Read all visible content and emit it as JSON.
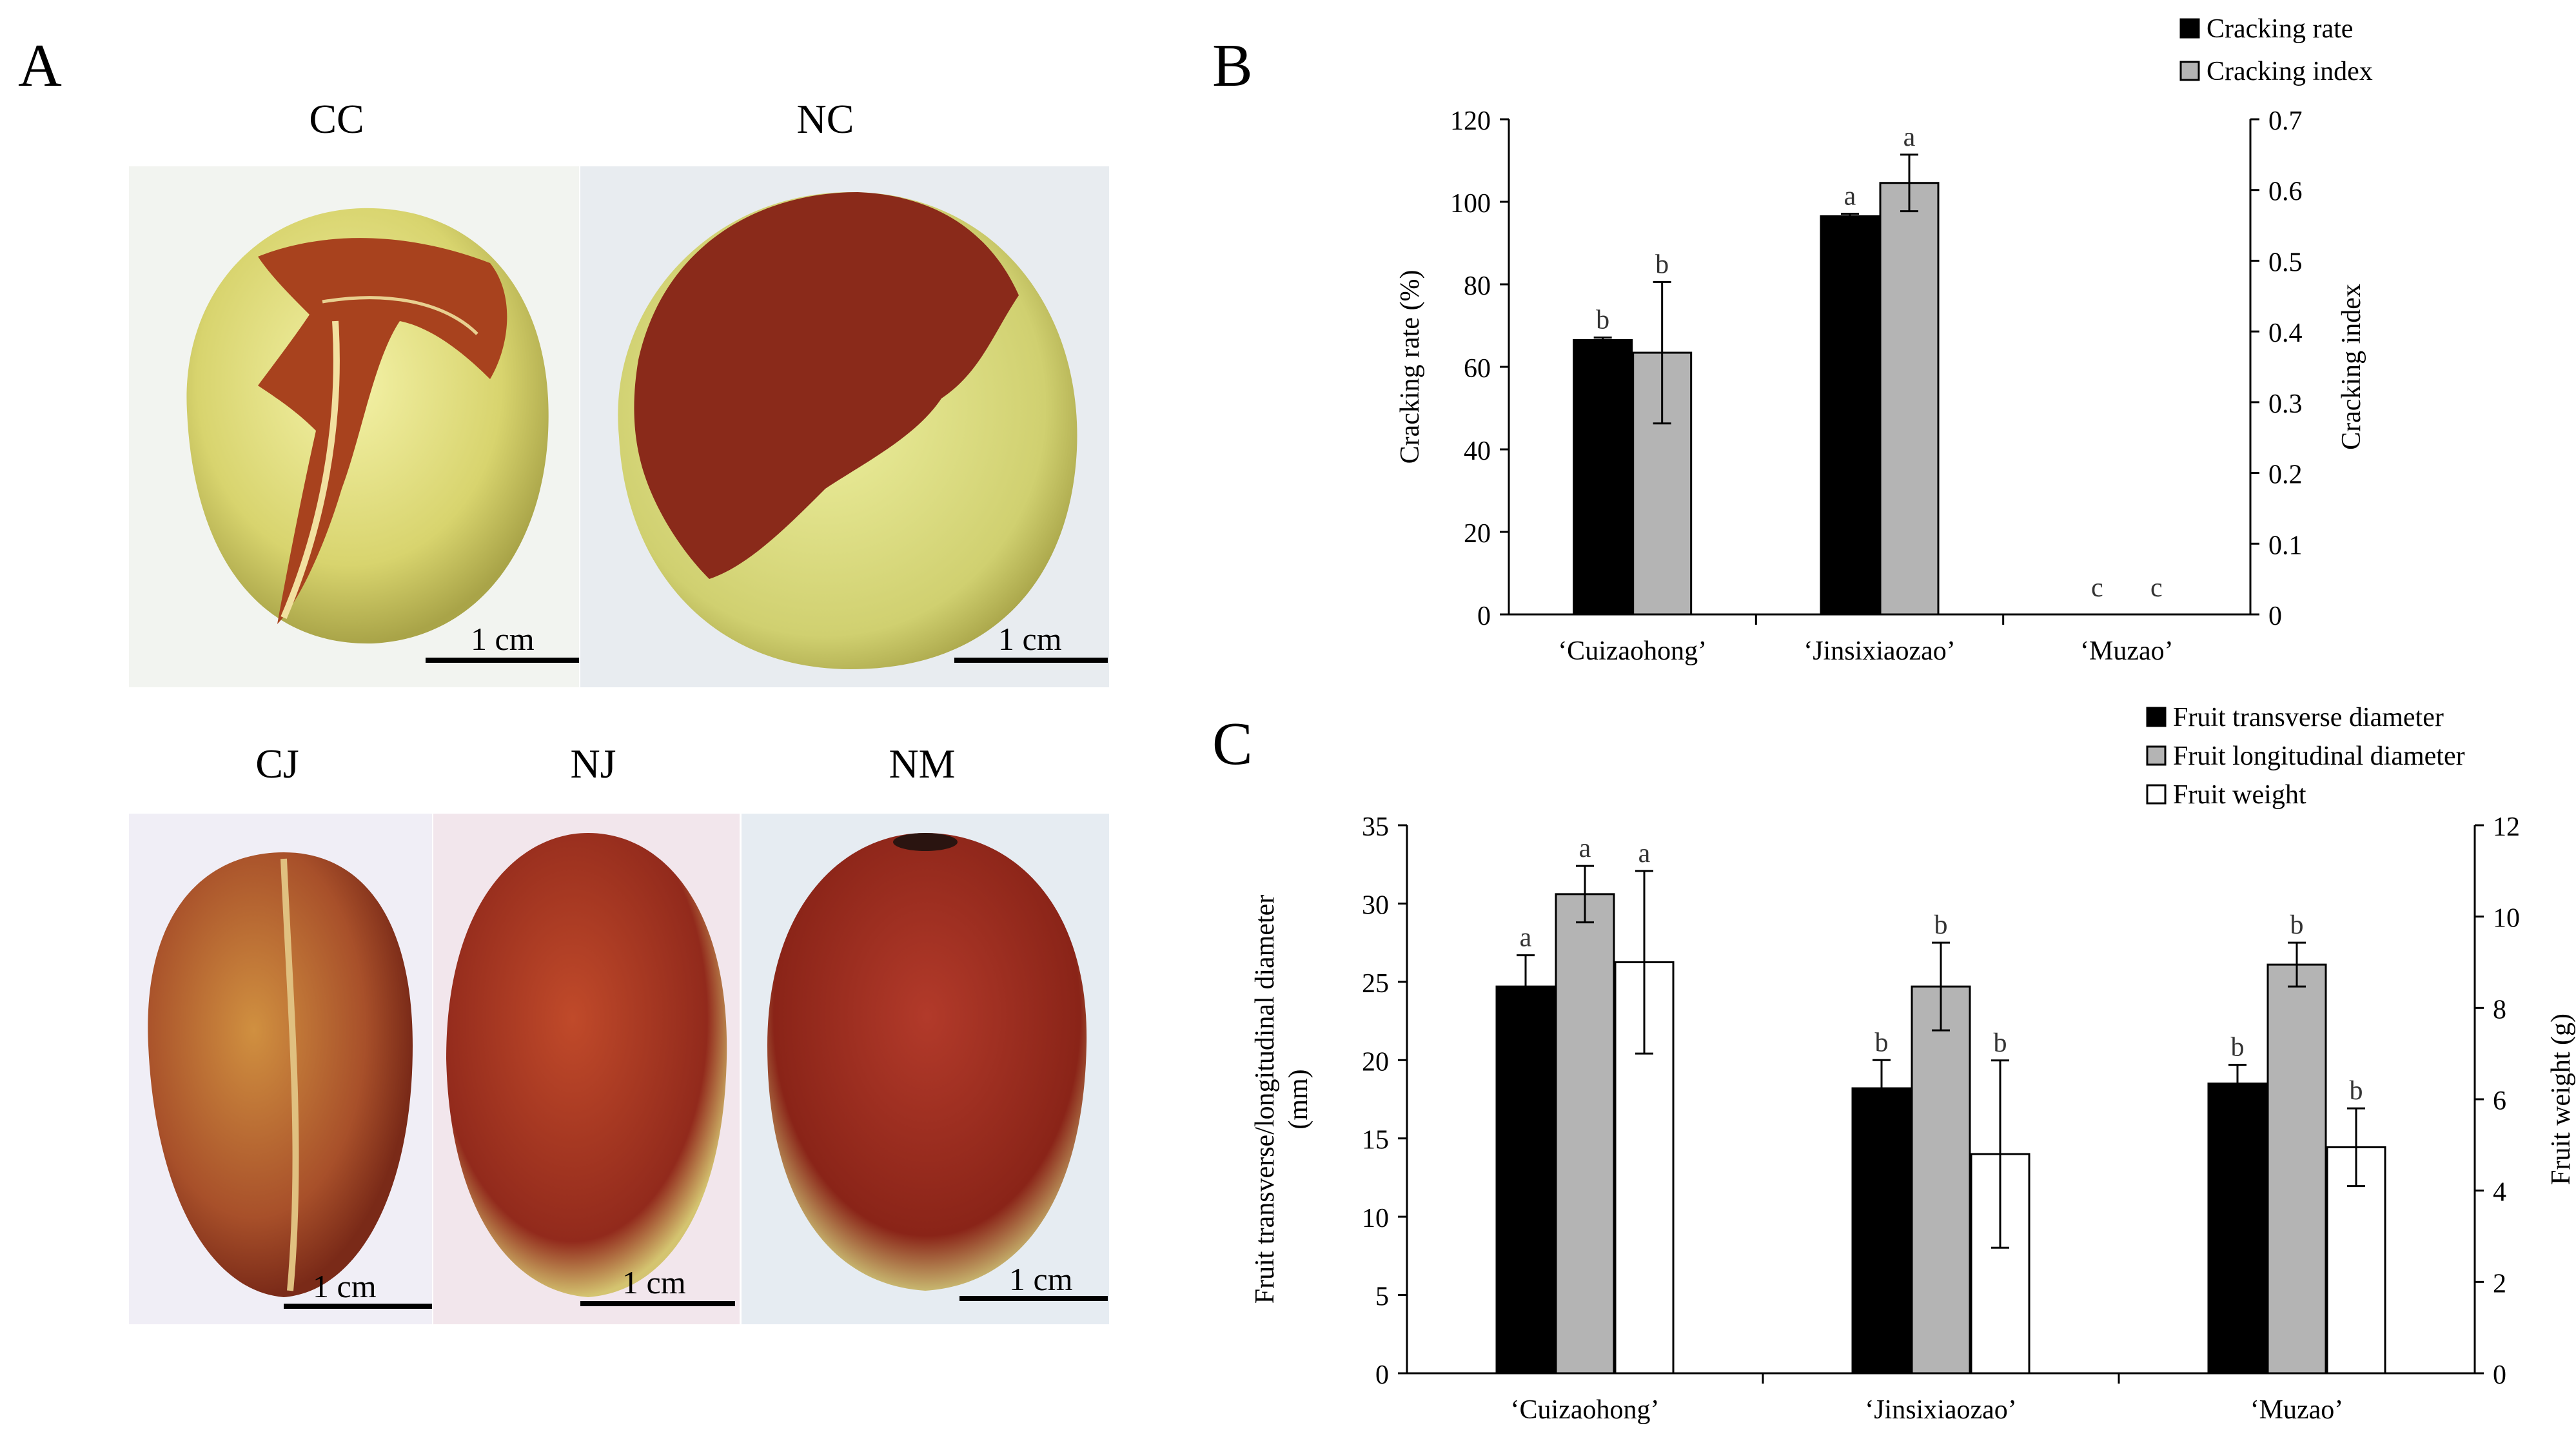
{
  "panels": {
    "a_label": "A",
    "b_label": "B",
    "c_label": "C"
  },
  "photos": {
    "labels": [
      "CC",
      "NC",
      "CJ",
      "NJ",
      "NM"
    ],
    "scale_text": "1 cm"
  },
  "colors": {
    "black_bar": "#000000",
    "gray_bar": "#b4b4b4",
    "white_bar": "#ffffff",
    "fruit_yellow": "#d9d97a",
    "fruit_red": "#8a2a1a",
    "crack_red": "#a8421e"
  },
  "chart_data": [
    {
      "type": "bar",
      "id": "B",
      "categories": [
        "‘Cuizaohong’",
        "‘Jinsixiaozao’",
        "‘Muzao’"
      ],
      "series": [
        {
          "name": "Cracking rate",
          "axis": "left",
          "values": [
            66.5,
            96.5,
            0
          ],
          "errors": [
            0.6,
            0.6,
            0
          ],
          "letters": [
            "b",
            "a",
            "c"
          ]
        },
        {
          "name": "Cracking index",
          "axis": "right",
          "values": [
            0.37,
            0.61,
            0
          ],
          "errors": [
            0.1,
            0.04,
            0
          ],
          "letters": [
            "b",
            "a",
            "c"
          ]
        }
      ],
      "ylabel": "Cracking rate (%)",
      "y2label": "Cracking index",
      "ylim": [
        0,
        120
      ],
      "yticks": [
        "0",
        "20",
        "40",
        "60",
        "80",
        "100",
        "120"
      ],
      "y2lim": [
        0,
        0.7
      ],
      "y2ticks": [
        "0",
        "0.1",
        "0.2",
        "0.3",
        "0.4",
        "0.5",
        "0.6",
        "0.7"
      ],
      "legend": [
        "Cracking rate",
        "Cracking index"
      ],
      "legend_position": "top-right"
    },
    {
      "type": "bar",
      "id": "C",
      "categories": [
        "‘Cuizaohong’",
        "‘Jinsixiaozao’",
        "‘Muzao’"
      ],
      "series": [
        {
          "name": "Fruit transverse diameter",
          "axis": "left",
          "values": [
            24.7,
            18.2,
            18.5
          ],
          "errors": [
            2.0,
            1.8,
            1.2
          ],
          "letters": [
            "a",
            "b",
            "b"
          ]
        },
        {
          "name": "Fruit longitudinal diameter",
          "axis": "left",
          "values": [
            30.6,
            24.7,
            26.1
          ],
          "errors": [
            1.8,
            2.8,
            1.4
          ],
          "letters": [
            "a",
            "b",
            "b"
          ]
        },
        {
          "name": "Fruit weight",
          "axis": "right",
          "values": [
            9.0,
            4.8,
            4.95
          ],
          "errors": [
            2.0,
            2.05,
            0.85
          ],
          "letters": [
            "a",
            "b",
            "b"
          ]
        }
      ],
      "ylabel_line1": "Fruit transverse/longitudinal diameter",
      "ylabel_line2": "(mm)",
      "y2label": "Fruit weight (g)",
      "ylim": [
        0,
        35
      ],
      "yticks": [
        "0",
        "5",
        "10",
        "15",
        "20",
        "25",
        "30",
        "35"
      ],
      "y2lim": [
        0,
        12
      ],
      "y2ticks": [
        "0",
        "2",
        "4",
        "6",
        "8",
        "10",
        "12"
      ],
      "legend": [
        "Fruit transverse diameter",
        "Fruit longitudinal diameter",
        "Fruit weight"
      ],
      "legend_position": "top-right"
    }
  ]
}
